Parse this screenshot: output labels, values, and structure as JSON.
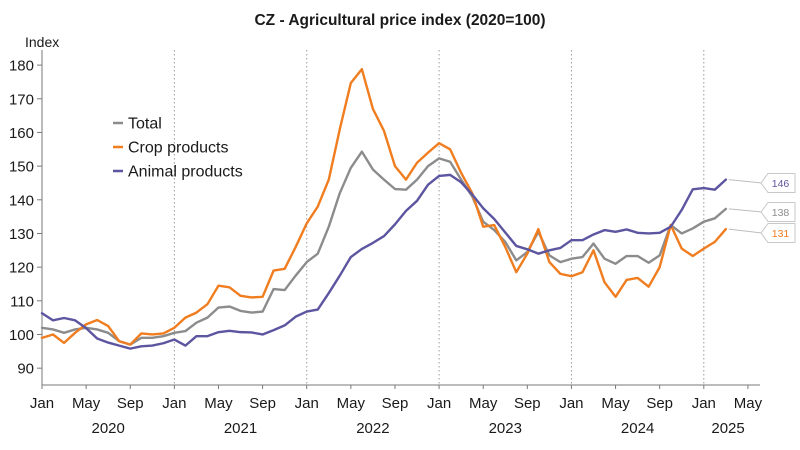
{
  "chart_data": {
    "type": "line",
    "title": "CZ - Agricultural price index (2020=100)",
    "ylabel": "Index",
    "xlabel": "",
    "ylim": [
      85,
      183
    ],
    "yticks": [
      90,
      100,
      110,
      120,
      130,
      140,
      150,
      160,
      170,
      180
    ],
    "x_month_ticks": [
      "Jan",
      "May",
      "Sep",
      "Jan",
      "May",
      "Sep",
      "Jan",
      "May",
      "Sep",
      "Jan",
      "May",
      "Sep",
      "Jan",
      "May",
      "Sep",
      "Jan",
      "May"
    ],
    "x_year_labels": [
      "2020",
      "2021",
      "2022",
      "2023",
      "2024",
      "2025"
    ],
    "grid": "vertical dotted at Jan",
    "legend_position": "upper-left",
    "series": [
      {
        "name": "Total",
        "color": "#8c8c8c",
        "end_label": "138",
        "values": [
          102,
          101.5,
          100.5,
          101.5,
          102,
          101.5,
          100.5,
          98,
          97,
          99,
          99,
          99.5,
          100.5,
          101,
          103.5,
          105,
          108,
          108.3,
          107,
          106.5,
          106.8,
          113.5,
          113.2,
          117.5,
          121.5,
          124,
          132,
          142,
          149.5,
          154.3,
          149,
          146,
          143.2,
          143,
          146,
          150,
          152.3,
          151.3,
          146,
          141,
          133.5,
          131,
          127.5,
          122,
          124.5,
          130.5,
          123.5,
          121.5,
          122.5,
          123,
          127,
          122.5,
          121,
          123.3,
          123.3,
          121.3,
          123.5,
          132.5,
          130,
          131.5,
          133.5,
          134.5,
          137.3
        ]
      },
      {
        "name": "Crop products",
        "color": "#f07d1f",
        "end_label": "131",
        "values": [
          99,
          100,
          97.5,
          100.5,
          103,
          104.3,
          102.5,
          98,
          97,
          100.3,
          100,
          100.3,
          102,
          105,
          106.5,
          109,
          114.5,
          114,
          111.5,
          111,
          111.2,
          119,
          119.5,
          126,
          133,
          138,
          146,
          161,
          174.7,
          178.8,
          167,
          160.5,
          150,
          146,
          151,
          154,
          156.8,
          155,
          148,
          142,
          132,
          132.5,
          126,
          118.5,
          124,
          131.3,
          121.5,
          118,
          117.3,
          118.5,
          125,
          115.5,
          111.2,
          116.2,
          116.8,
          114.2,
          120,
          132.5,
          125.5,
          123.3,
          125.5,
          127.5,
          131.3
        ]
      },
      {
        "name": "Animal products",
        "color": "#5c55a0",
        "end_label": "146",
        "values": [
          106.3,
          104.2,
          104.9,
          104.2,
          101.9,
          98.8,
          97.6,
          96.7,
          95.8,
          96.5,
          96.7,
          97.4,
          98.5,
          96.7,
          99.5,
          99.5,
          100.7,
          101.1,
          100.7,
          100.6,
          100,
          101.3,
          102.7,
          105.3,
          106.8,
          107.4,
          112.3,
          117.5,
          123,
          125.4,
          127.2,
          129.2,
          132.7,
          136.7,
          139.7,
          144.5,
          147.1,
          147.4,
          145.2,
          141.6,
          137.5,
          134.3,
          130.3,
          126.3,
          125.3,
          124,
          125,
          125.7,
          128,
          128,
          129.7,
          131,
          130.5,
          131.2,
          130.2,
          130,
          130.2,
          132,
          137,
          143.1,
          143.5,
          143,
          146
        ]
      }
    ]
  }
}
